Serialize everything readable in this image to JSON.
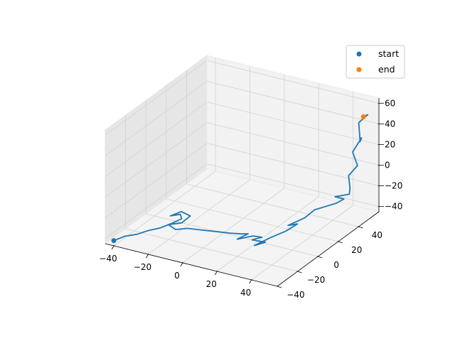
{
  "chart_data": {
    "type": "line",
    "projection": "3d",
    "title": "",
    "xlabel": "",
    "ylabel": "",
    "zlabel": "",
    "xlim": [
      -45,
      55
    ],
    "ylim": [
      -40,
      60
    ],
    "zlim": [
      -45,
      65
    ],
    "x_ticks": [
      -40,
      -20,
      0,
      20,
      40
    ],
    "y_ticks": [
      -40,
      -20,
      0,
      20,
      40
    ],
    "z_ticks": [
      -40,
      -20,
      0,
      20,
      40,
      60
    ],
    "grid": true,
    "legend_position": "top-right",
    "series": [
      {
        "kind": "line",
        "color": "#1f77b4",
        "points": [
          [
            -40,
            -40,
            -40
          ],
          [
            -36,
            -36,
            -37
          ],
          [
            -30,
            -34,
            -34
          ],
          [
            -25,
            -32,
            -30
          ],
          [
            -20,
            -28,
            -28
          ],
          [
            -14,
            -27,
            -22
          ],
          [
            -10,
            -24,
            -18
          ],
          [
            -12,
            -22,
            -16
          ],
          [
            -16,
            -25,
            -17
          ],
          [
            -12,
            -21,
            -14
          ],
          [
            -8,
            -19,
            -18
          ],
          [
            -10,
            -24,
            -22
          ],
          [
            -16,
            -27,
            -24
          ],
          [
            -10,
            -30,
            -24
          ],
          [
            -4,
            -28,
            -22
          ],
          [
            2,
            -24,
            -24
          ],
          [
            6,
            -18,
            -28
          ],
          [
            12,
            -14,
            -30
          ],
          [
            16,
            -10,
            -32
          ],
          [
            18,
            -6,
            -34
          ],
          [
            14,
            -10,
            -38
          ],
          [
            22,
            -8,
            -33
          ],
          [
            26,
            -6,
            -34
          ],
          [
            22,
            -9,
            -36
          ],
          [
            28,
            -6,
            -38
          ],
          [
            24,
            -10,
            -40
          ],
          [
            30,
            -4,
            -34
          ],
          [
            34,
            4,
            -32
          ],
          [
            36,
            12,
            -30
          ],
          [
            34,
            6,
            -28
          ],
          [
            38,
            16,
            -26
          ],
          [
            40,
            22,
            -22
          ],
          [
            44,
            26,
            -20
          ],
          [
            48,
            30,
            -18
          ],
          [
            50,
            34,
            -16
          ],
          [
            46,
            32,
            -14
          ],
          [
            52,
            36,
            -12
          ],
          [
            50,
            40,
            -10
          ],
          [
            48,
            42,
            0
          ],
          [
            52,
            44,
            10
          ],
          [
            48,
            46,
            20
          ],
          [
            52,
            48,
            34
          ],
          [
            50,
            50,
            28
          ],
          [
            48,
            52,
            44
          ],
          [
            52,
            54,
            52
          ],
          [
            49,
            55,
            48
          ]
        ]
      },
      {
        "kind": "scatter",
        "name": "start",
        "color": "#1f77b4",
        "points": [
          [
            -40,
            -40,
            -40
          ]
        ]
      },
      {
        "kind": "scatter",
        "name": "end",
        "color": "#ff7f0e",
        "points": [
          [
            49,
            55,
            48
          ]
        ]
      }
    ]
  }
}
